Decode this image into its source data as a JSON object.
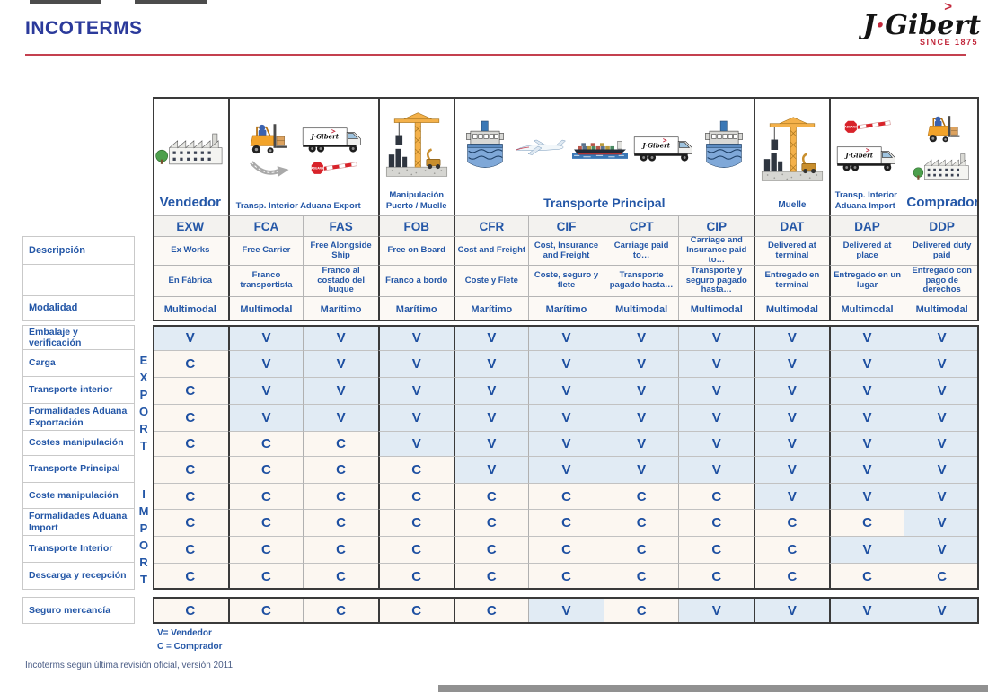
{
  "title": "INCOTERMS",
  "logo": {
    "caret": ">",
    "part1": "J",
    "dot": "·",
    "part2": "Gibert",
    "tagline": "SINCE 1875"
  },
  "footnote": "Incoterms según última revisión oficial, versión 2011",
  "legend": {
    "v": "V= Vendedor",
    "c": "C = Comprador"
  },
  "colors": {
    "accent_blue": "#2457a7",
    "title_blue": "#2b3a9b",
    "brand_red": "#c2273b",
    "rule_red": "#c4404f",
    "vendedor_cell_bg": "#e1ebf4",
    "comprador_cell_bg": "#fcf7f1"
  },
  "table": {
    "descripcion_label": "Descripción",
    "modalidad_label": "Modalidad",
    "export_label": "EXPORT",
    "import_label": "IMPORT",
    "customs_sign": "ADUANA",
    "header_groups": [
      {
        "label": "Vendedor",
        "span": 1,
        "icons": [
          "factory-icon"
        ]
      },
      {
        "label": "Transp. Interior Aduana Export",
        "span": 2,
        "icons": [
          "forklift-icon",
          "truck-icon",
          "curved-arrow-icon",
          "customs-barrier-icon"
        ]
      },
      {
        "label": "Manipulación Puerto / Muelle",
        "span": 1,
        "icons": [
          "crane-icon"
        ]
      },
      {
        "label": "Transporte Principal",
        "span": 4,
        "icons": [
          "ship-front-icon",
          "airplane-icon",
          "cargo-ship-icon",
          "truck-icon",
          "ship-front-icon"
        ]
      },
      {
        "label": "Muelle",
        "span": 1,
        "icons": [
          "crane-icon"
        ]
      },
      {
        "label": "Transp. Interior Aduana Import",
        "span": 1,
        "icons": [
          "customs-barrier-icon",
          "truck-icon"
        ]
      },
      {
        "label": "Comprador",
        "span": 1,
        "icons": [
          "forklift-icon",
          "factory-icon"
        ]
      }
    ],
    "columns": [
      {
        "code": "EXW",
        "name_en": "Ex Works",
        "name_es": "En Fábrica",
        "modalidad": "Multimodal"
      },
      {
        "code": "FCA",
        "name_en": "Free Carrier",
        "name_es": "Franco transportista",
        "modalidad": "Multimodal"
      },
      {
        "code": "FAS",
        "name_en": "Free Alongside Ship",
        "name_es": "Franco al costado del buque",
        "modalidad": "Marítimo"
      },
      {
        "code": "FOB",
        "name_en": "Free on Board",
        "name_es": "Franco a bordo",
        "modalidad": "Marítimo"
      },
      {
        "code": "CFR",
        "name_en": "Cost and Freight",
        "name_es": "Coste y Flete",
        "modalidad": "Marítimo"
      },
      {
        "code": "CIF",
        "name_en": "Cost, Insurance and Freight",
        "name_es": "Coste, seguro y flete",
        "modalidad": "Marítimo"
      },
      {
        "code": "CPT",
        "name_en": "Carriage paid to…",
        "name_es": "Transporte pagado hasta…",
        "modalidad": "Multimodal"
      },
      {
        "code": "CIP",
        "name_en": "Carriage and Insurance paid to…",
        "name_es": "Transporte y seguro pagado hasta…",
        "modalidad": "Multimodal"
      },
      {
        "code": "DAT",
        "name_en": "Delivered at terminal",
        "name_es": "Entregado en terminal",
        "modalidad": "Multimodal"
      },
      {
        "code": "DAP",
        "name_en": "Delivered at place",
        "name_es": "Entregado en un lugar",
        "modalidad": "Multimodal"
      },
      {
        "code": "DDP",
        "name_en": "Delivered duty paid",
        "name_es": "Entregado con pago de derechos",
        "modalidad": "Multimodal"
      }
    ],
    "rows": [
      {
        "label": "Embalaje y verificación",
        "values": [
          "V",
          "V",
          "V",
          "V",
          "V",
          "V",
          "V",
          "V",
          "V",
          "V",
          "V"
        ]
      },
      {
        "label": "Carga",
        "values": [
          "C",
          "V",
          "V",
          "V",
          "V",
          "V",
          "V",
          "V",
          "V",
          "V",
          "V"
        ]
      },
      {
        "label": "Transporte interior",
        "values": [
          "C",
          "V",
          "V",
          "V",
          "V",
          "V",
          "V",
          "V",
          "V",
          "V",
          "V"
        ]
      },
      {
        "label": "Formalidades Aduana Exportación",
        "values": [
          "C",
          "V",
          "V",
          "V",
          "V",
          "V",
          "V",
          "V",
          "V",
          "V",
          "V"
        ]
      },
      {
        "label": "Costes manipulación",
        "values": [
          "C",
          "C",
          "C",
          "V",
          "V",
          "V",
          "V",
          "V",
          "V",
          "V",
          "V"
        ]
      },
      {
        "label": "Transporte Principal",
        "values": [
          "C",
          "C",
          "C",
          "C",
          "V",
          "V",
          "V",
          "V",
          "V",
          "V",
          "V"
        ]
      },
      {
        "label": "Coste manipulación",
        "values": [
          "C",
          "C",
          "C",
          "C",
          "C",
          "C",
          "C",
          "C",
          "V",
          "V",
          "V"
        ]
      },
      {
        "label": "Formalidades Aduana Import",
        "values": [
          "C",
          "C",
          "C",
          "C",
          "C",
          "C",
          "C",
          "C",
          "C",
          "C",
          "V"
        ]
      },
      {
        "label": "Transporte Interior",
        "values": [
          "C",
          "C",
          "C",
          "C",
          "C",
          "C",
          "C",
          "C",
          "C",
          "V",
          "V"
        ]
      },
      {
        "label": "Descarga y recepción",
        "values": [
          "C",
          "C",
          "C",
          "C",
          "C",
          "C",
          "C",
          "C",
          "C",
          "C",
          "C"
        ]
      },
      {
        "label": "Seguro mercancía",
        "separate": true,
        "values": [
          "C",
          "C",
          "C",
          "C",
          "C",
          "V",
          "C",
          "V",
          "V",
          "V",
          "V"
        ]
      }
    ]
  }
}
